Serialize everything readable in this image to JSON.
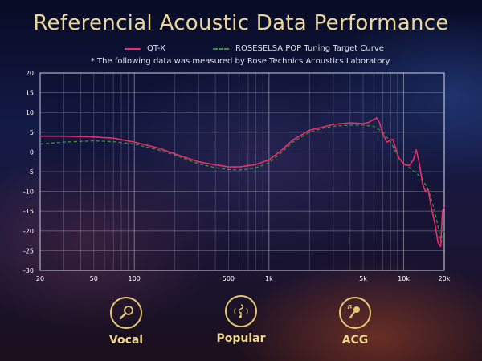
{
  "page": {
    "title": "Referencial Acoustic Data Performance",
    "note": "* The following data was measured by Rose Technics Acoustics Laboratory."
  },
  "categories": [
    {
      "label": "Vocal",
      "icon": "microphone-icon"
    },
    {
      "label": "Popular",
      "icon": "music-note-icon"
    },
    {
      "label": "ACG",
      "icon": "singer-icon"
    }
  ],
  "colors": {
    "qtx": "#ec2d6c",
    "target": "#3f8f3f",
    "accent": "#ecd79a"
  },
  "chart_data": {
    "type": "line",
    "x_scale": "log",
    "xlim": [
      20,
      20000
    ],
    "ylim": [
      -30,
      20
    ],
    "grid": true,
    "legend_position": "top-center",
    "xticks": [
      {
        "v": 20,
        "label": "20"
      },
      {
        "v": 50,
        "label": "50"
      },
      {
        "v": 100,
        "label": "100"
      },
      {
        "v": 500,
        "label": "500"
      },
      {
        "v": 1000,
        "label": "1k"
      },
      {
        "v": 5000,
        "label": "5k"
      },
      {
        "v": 10000,
        "label": "10k"
      },
      {
        "v": 20000,
        "label": "20k"
      }
    ],
    "yticks": [
      20,
      15,
      10,
      5,
      0,
      -5,
      -10,
      -15,
      -20,
      -25,
      -30
    ],
    "series": [
      {
        "name": "QT-X",
        "style": "solid",
        "points": [
          [
            20,
            4
          ],
          [
            30,
            4
          ],
          [
            50,
            3.8
          ],
          [
            70,
            3.5
          ],
          [
            100,
            2.5
          ],
          [
            150,
            1
          ],
          [
            200,
            -0.5
          ],
          [
            300,
            -2.5
          ],
          [
            400,
            -3.3
          ],
          [
            500,
            -3.8
          ],
          [
            600,
            -3.8
          ],
          [
            700,
            -3.5
          ],
          [
            800,
            -3.2
          ],
          [
            1000,
            -2
          ],
          [
            1200,
            0
          ],
          [
            1500,
            3
          ],
          [
            2000,
            5.5
          ],
          [
            2500,
            6.3
          ],
          [
            3000,
            7
          ],
          [
            3500,
            7.2
          ],
          [
            4000,
            7.4
          ],
          [
            4500,
            7.3
          ],
          [
            5000,
            7.2
          ],
          [
            5500,
            7.5
          ],
          [
            6000,
            8.3
          ],
          [
            6300,
            8.6
          ],
          [
            6600,
            7.5
          ],
          [
            7000,
            4.5
          ],
          [
            7500,
            2.5
          ],
          [
            8000,
            3
          ],
          [
            8300,
            3.2
          ],
          [
            8700,
            1
          ],
          [
            9200,
            -1.5
          ],
          [
            10000,
            -3
          ],
          [
            11000,
            -3.5
          ],
          [
            11800,
            -2
          ],
          [
            12400,
            0.5
          ],
          [
            13000,
            -2.5
          ],
          [
            13800,
            -8
          ],
          [
            14500,
            -10
          ],
          [
            15200,
            -9.5
          ],
          [
            16000,
            -14
          ],
          [
            17000,
            -18
          ],
          [
            18000,
            -23
          ],
          [
            18800,
            -24
          ],
          [
            19400,
            -15
          ],
          [
            20000,
            -14
          ]
        ]
      },
      {
        "name": "ROSESELSA POP Tuning Target Curve",
        "style": "dashed",
        "points": [
          [
            20,
            2
          ],
          [
            30,
            2.5
          ],
          [
            50,
            2.8
          ],
          [
            70,
            2.6
          ],
          [
            100,
            2
          ],
          [
            150,
            0.5
          ],
          [
            200,
            -0.8
          ],
          [
            300,
            -3
          ],
          [
            400,
            -4
          ],
          [
            500,
            -4.5
          ],
          [
            600,
            -4.6
          ],
          [
            700,
            -4.4
          ],
          [
            800,
            -4
          ],
          [
            1000,
            -2.8
          ],
          [
            1200,
            -0.5
          ],
          [
            1500,
            2.5
          ],
          [
            2000,
            5
          ],
          [
            2500,
            6
          ],
          [
            3000,
            6.5
          ],
          [
            4000,
            6.8
          ],
          [
            5000,
            6.8
          ],
          [
            6000,
            6.5
          ],
          [
            7000,
            5
          ],
          [
            8000,
            2.5
          ],
          [
            9000,
            -1
          ],
          [
            10000,
            -3
          ],
          [
            11000,
            -4
          ],
          [
            12000,
            -5
          ],
          [
            13000,
            -6
          ],
          [
            14000,
            -7.5
          ],
          [
            15000,
            -9
          ],
          [
            16000,
            -12
          ],
          [
            17000,
            -15
          ],
          [
            18000,
            -19
          ],
          [
            19000,
            -23
          ],
          [
            20000,
            -20
          ]
        ]
      }
    ]
  }
}
